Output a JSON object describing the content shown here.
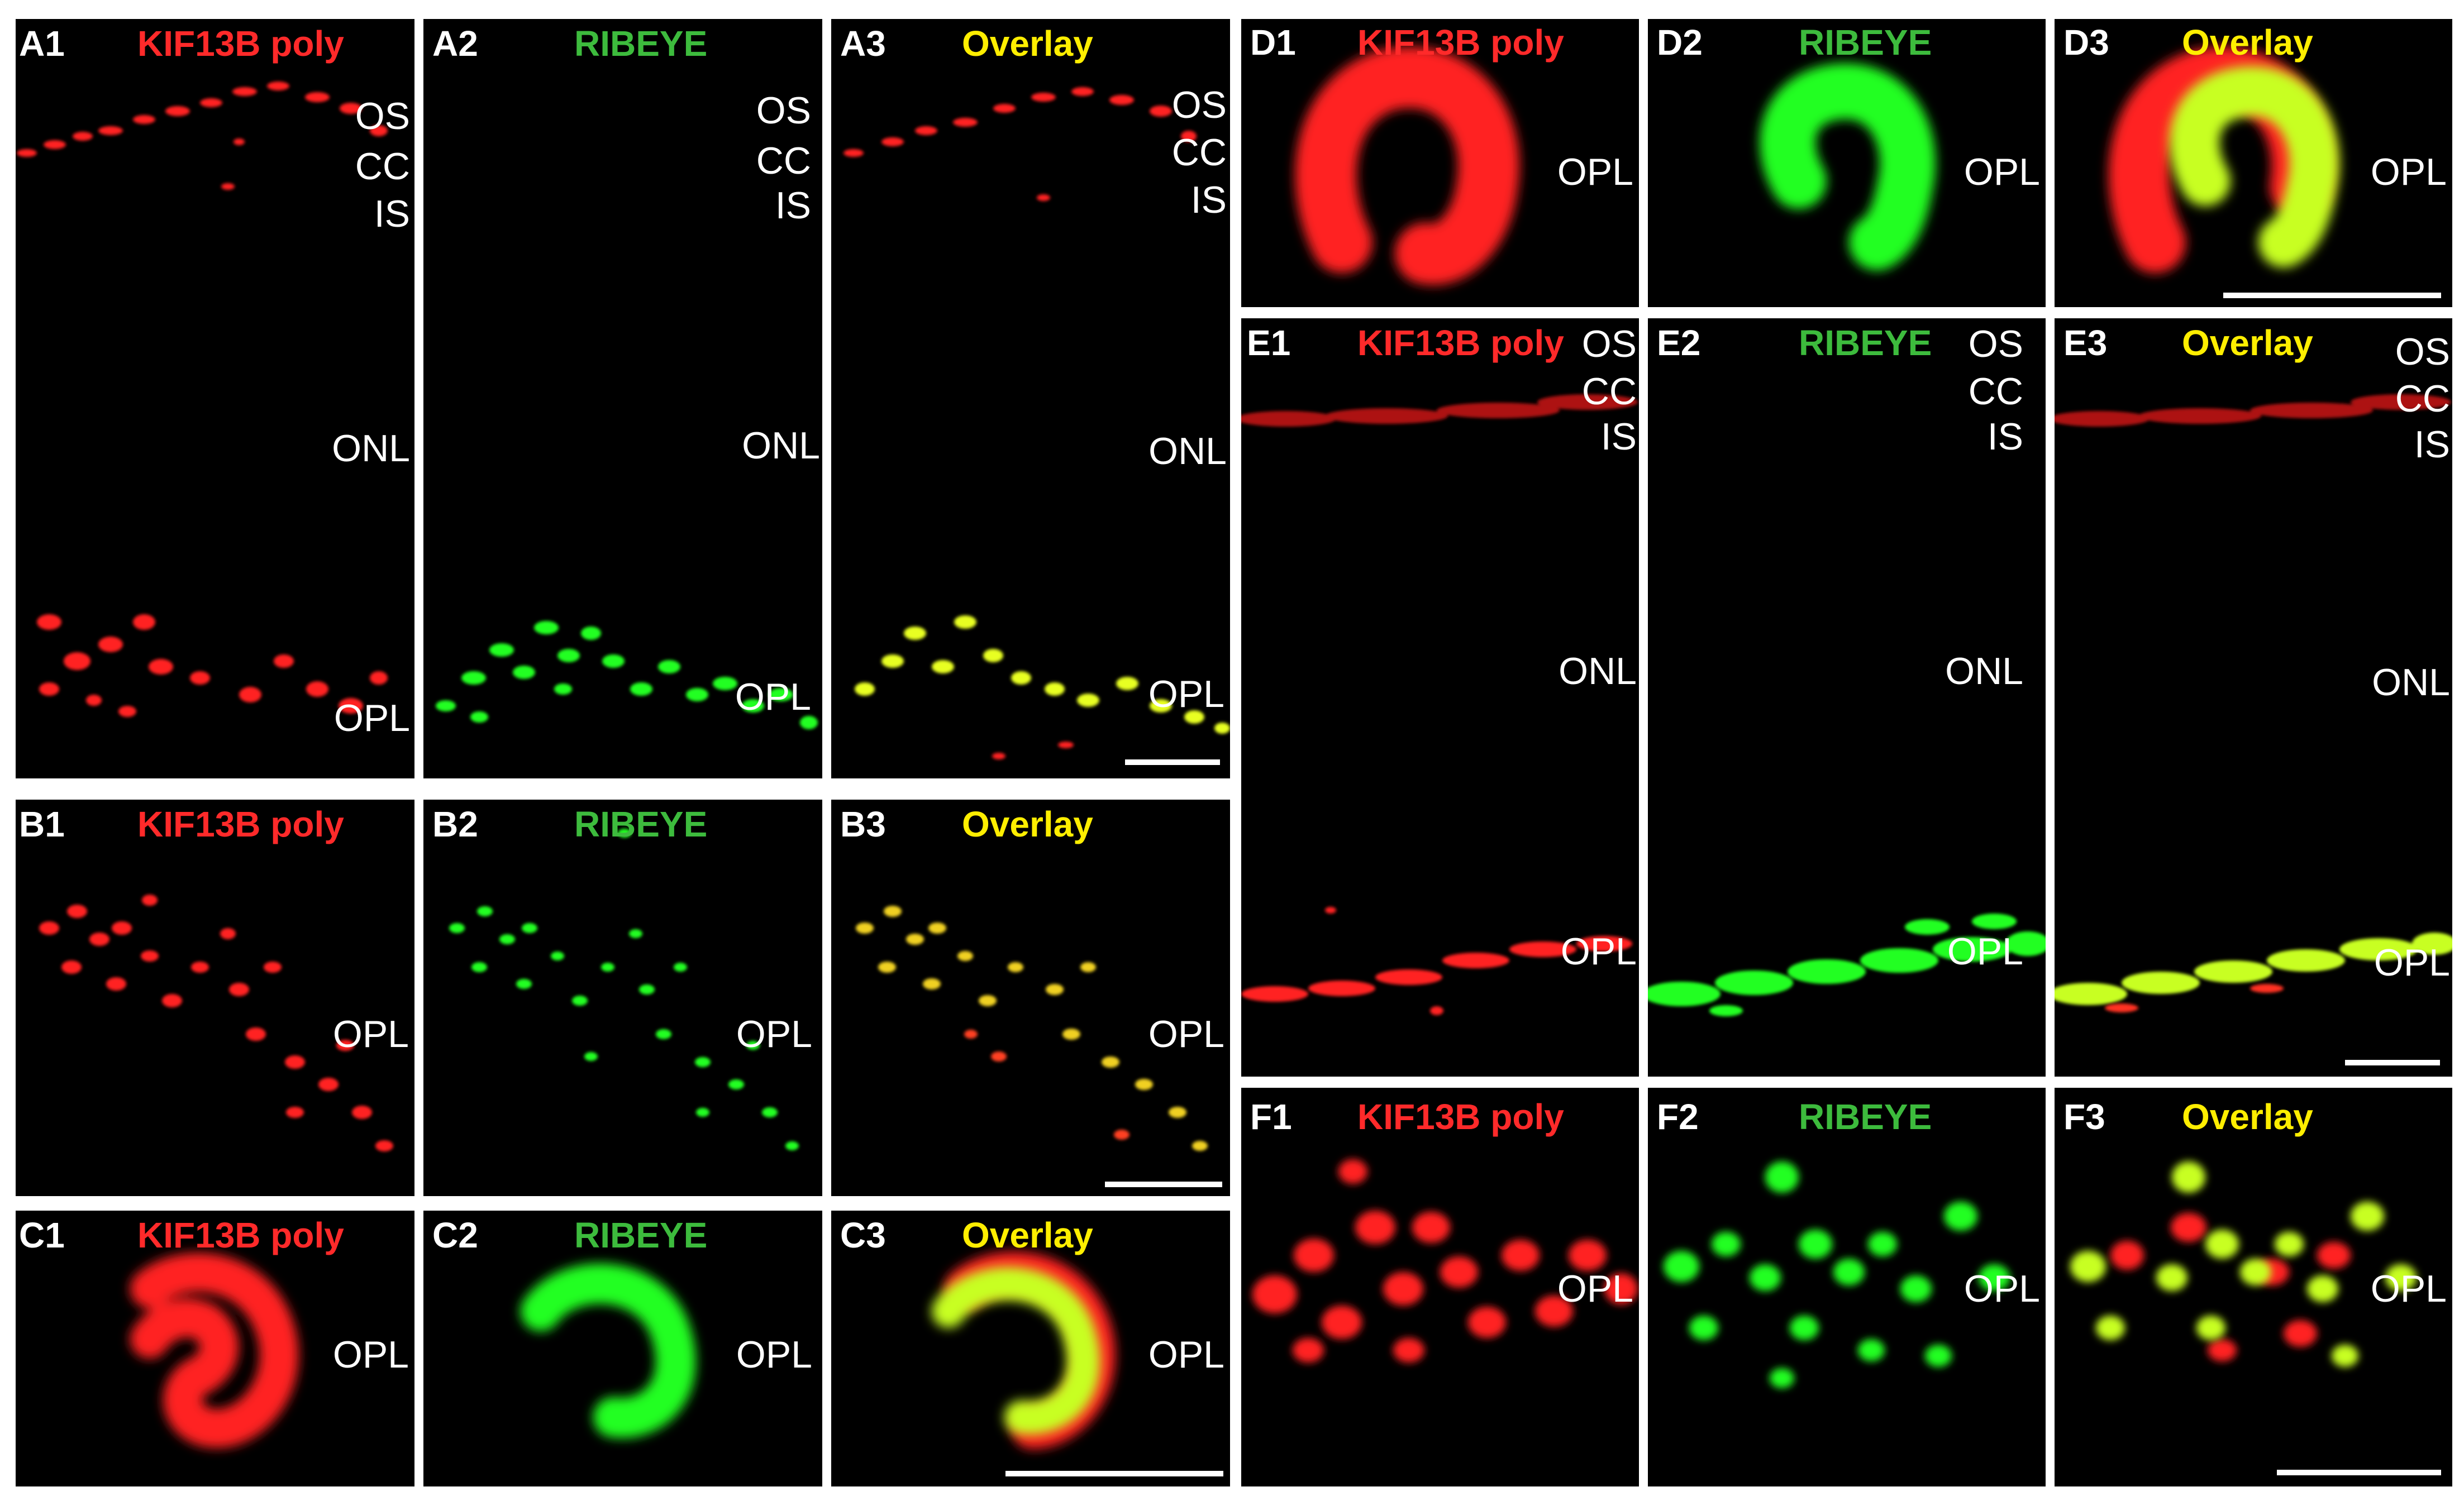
{
  "figure": {
    "channels": {
      "kif": {
        "label": "KIF13B poly",
        "color": "#ff2a2a"
      },
      "ribeye": {
        "label": "RIBEYE",
        "color": "#3dbb3d"
      },
      "overlay": {
        "label": "Overlay",
        "color": "#ffee00"
      }
    },
    "panels": [
      {
        "id": "A1",
        "channel": "kif",
        "layers": [
          "OS",
          "CC",
          "IS",
          "ONL",
          "OPL"
        ]
      },
      {
        "id": "A2",
        "channel": "ribeye",
        "layers": [
          "OS",
          "CC",
          "IS",
          "ONL",
          "OPL"
        ]
      },
      {
        "id": "A3",
        "channel": "overlay",
        "layers": [
          "OS",
          "CC",
          "IS",
          "ONL",
          "OPL"
        ],
        "scale_bar": true
      },
      {
        "id": "B1",
        "channel": "kif",
        "layers": [
          "OPL"
        ]
      },
      {
        "id": "B2",
        "channel": "ribeye",
        "layers": [
          "OPL"
        ]
      },
      {
        "id": "B3",
        "channel": "overlay",
        "layers": [
          "OPL"
        ],
        "scale_bar": true
      },
      {
        "id": "C1",
        "channel": "kif",
        "layers": [
          "OPL"
        ]
      },
      {
        "id": "C2",
        "channel": "ribeye",
        "layers": [
          "OPL"
        ]
      },
      {
        "id": "C3",
        "channel": "overlay",
        "layers": [
          "OPL"
        ],
        "scale_bar": true
      },
      {
        "id": "D1",
        "channel": "kif",
        "layers": [
          "OPL"
        ]
      },
      {
        "id": "D2",
        "channel": "ribeye",
        "layers": [
          "OPL"
        ]
      },
      {
        "id": "D3",
        "channel": "overlay",
        "layers": [
          "OPL"
        ],
        "scale_bar": true
      },
      {
        "id": "E1",
        "channel": "kif",
        "layers": [
          "OS",
          "CC",
          "IS",
          "ONL",
          "OPL"
        ]
      },
      {
        "id": "E2",
        "channel": "ribeye",
        "layers": [
          "OS",
          "CC",
          "IS",
          "ONL",
          "OPL"
        ]
      },
      {
        "id": "E3",
        "channel": "overlay",
        "layers": [
          "OS",
          "CC",
          "IS",
          "ONL",
          "OPL"
        ],
        "scale_bar": true
      },
      {
        "id": "F1",
        "channel": "kif",
        "layers": [
          "OPL"
        ]
      },
      {
        "id": "F2",
        "channel": "ribeye",
        "layers": [
          "OPL"
        ]
      },
      {
        "id": "F3",
        "channel": "overlay",
        "layers": [
          "OPL"
        ],
        "scale_bar": true
      }
    ]
  }
}
